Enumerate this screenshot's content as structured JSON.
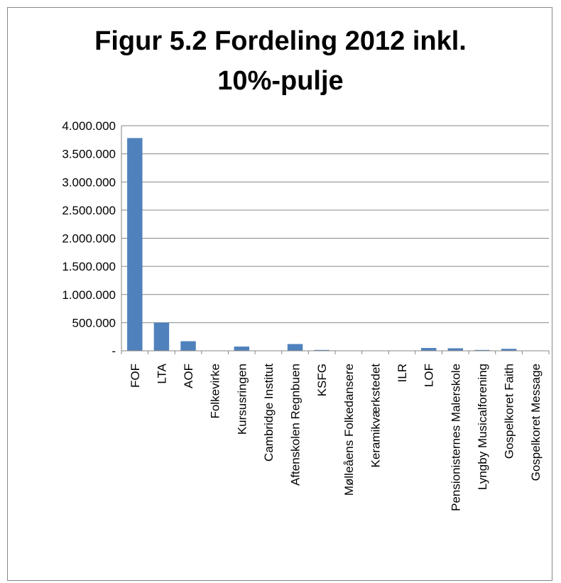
{
  "chart_data": {
    "type": "bar",
    "title_lines": [
      "Figur 5.2 Fordeling 2012 inkl.",
      "10%-pulje"
    ],
    "xlabel": "",
    "ylabel": "",
    "ylim": [
      0,
      4000000
    ],
    "y_ticks": [
      {
        "value": 0,
        "label": "-"
      },
      {
        "value": 500000,
        "label": "500.000"
      },
      {
        "value": 1000000,
        "label": "1.000.000"
      },
      {
        "value": 1500000,
        "label": "1.500.000"
      },
      {
        "value": 2000000,
        "label": "2.000.000"
      },
      {
        "value": 2500000,
        "label": "2.500.000"
      },
      {
        "value": 3000000,
        "label": "3.000.000"
      },
      {
        "value": 3500000,
        "label": "3.500.000"
      },
      {
        "value": 4000000,
        "label": "4.000.000"
      }
    ],
    "grid": true,
    "legend": "none",
    "categories": [
      "FOF",
      "LTA",
      "AOF",
      "Folkevirke",
      "Kursusringen",
      "Cambridge Institut",
      "Aftenskolen Regnbuen",
      "KSFG",
      "Mølleåens Folkedansere",
      "Keramikværkstedet",
      "ILR",
      "LOF",
      "Pensionisternes Malerskole",
      "Lyngby Musicalforening",
      "Gospelkoret Faith",
      "Gospelkoret Message"
    ],
    "values": [
      3780000,
      500000,
      170000,
      5000,
      75000,
      5000,
      120000,
      15000,
      5000,
      5000,
      5000,
      50000,
      45000,
      15000,
      35000,
      5000
    ],
    "bar_color": "#4f81bd"
  }
}
